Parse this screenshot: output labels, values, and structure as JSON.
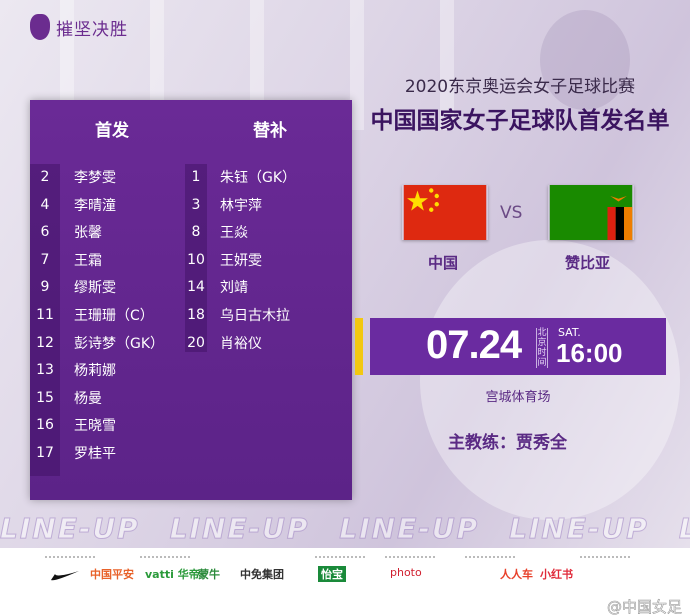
{
  "brand": {
    "slogan": "摧坚决胜"
  },
  "event": {
    "title": "2020东京奥运会女子足球比赛",
    "subtitle": "中国国家女子足球队首发名单"
  },
  "lineup": {
    "starters_label": "首发",
    "subs_label": "替补",
    "starters": [
      {
        "num": "2",
        "name": "李梦雯"
      },
      {
        "num": "4",
        "name": "李晴潼"
      },
      {
        "num": "6",
        "name": "张馨"
      },
      {
        "num": "7",
        "name": "王霜"
      },
      {
        "num": "9",
        "name": "缪斯雯"
      },
      {
        "num": "11",
        "name": "王珊珊（C）"
      },
      {
        "num": "12",
        "name": "彭诗梦（GK）"
      },
      {
        "num": "13",
        "name": "杨莉娜"
      },
      {
        "num": "15",
        "name": "杨曼"
      },
      {
        "num": "16",
        "name": "王晓雪"
      },
      {
        "num": "17",
        "name": "罗桂平"
      }
    ],
    "subs": [
      {
        "num": "1",
        "name": "朱钰（GK）"
      },
      {
        "num": "3",
        "name": "林宇萍"
      },
      {
        "num": "8",
        "name": "王焱"
      },
      {
        "num": "10",
        "name": "王妍雯"
      },
      {
        "num": "14",
        "name": "刘靖"
      },
      {
        "num": "18",
        "name": "乌日古木拉"
      },
      {
        "num": "20",
        "name": "肖裕仪"
      }
    ]
  },
  "match": {
    "home": "中国",
    "vs": "VS",
    "away": "赞比亚",
    "date": "07.24",
    "tz_label": "北京时间",
    "weekday": "SAT.",
    "time": "16:00",
    "venue": "宫城体育场",
    "coach": "主教练：贾秀全"
  },
  "banner": {
    "text": "LINE-UP"
  },
  "sponsors": [
    "中国平安",
    "vatti 华帝",
    "蒙牛",
    "中免集团",
    "怡宝",
    "photo",
    "人人车",
    "小红书"
  ],
  "watermark": "@中国女足",
  "colors": {
    "purple": "#6a2ba0",
    "accent": "#8a2be2",
    "yellow": "#f2c811"
  }
}
